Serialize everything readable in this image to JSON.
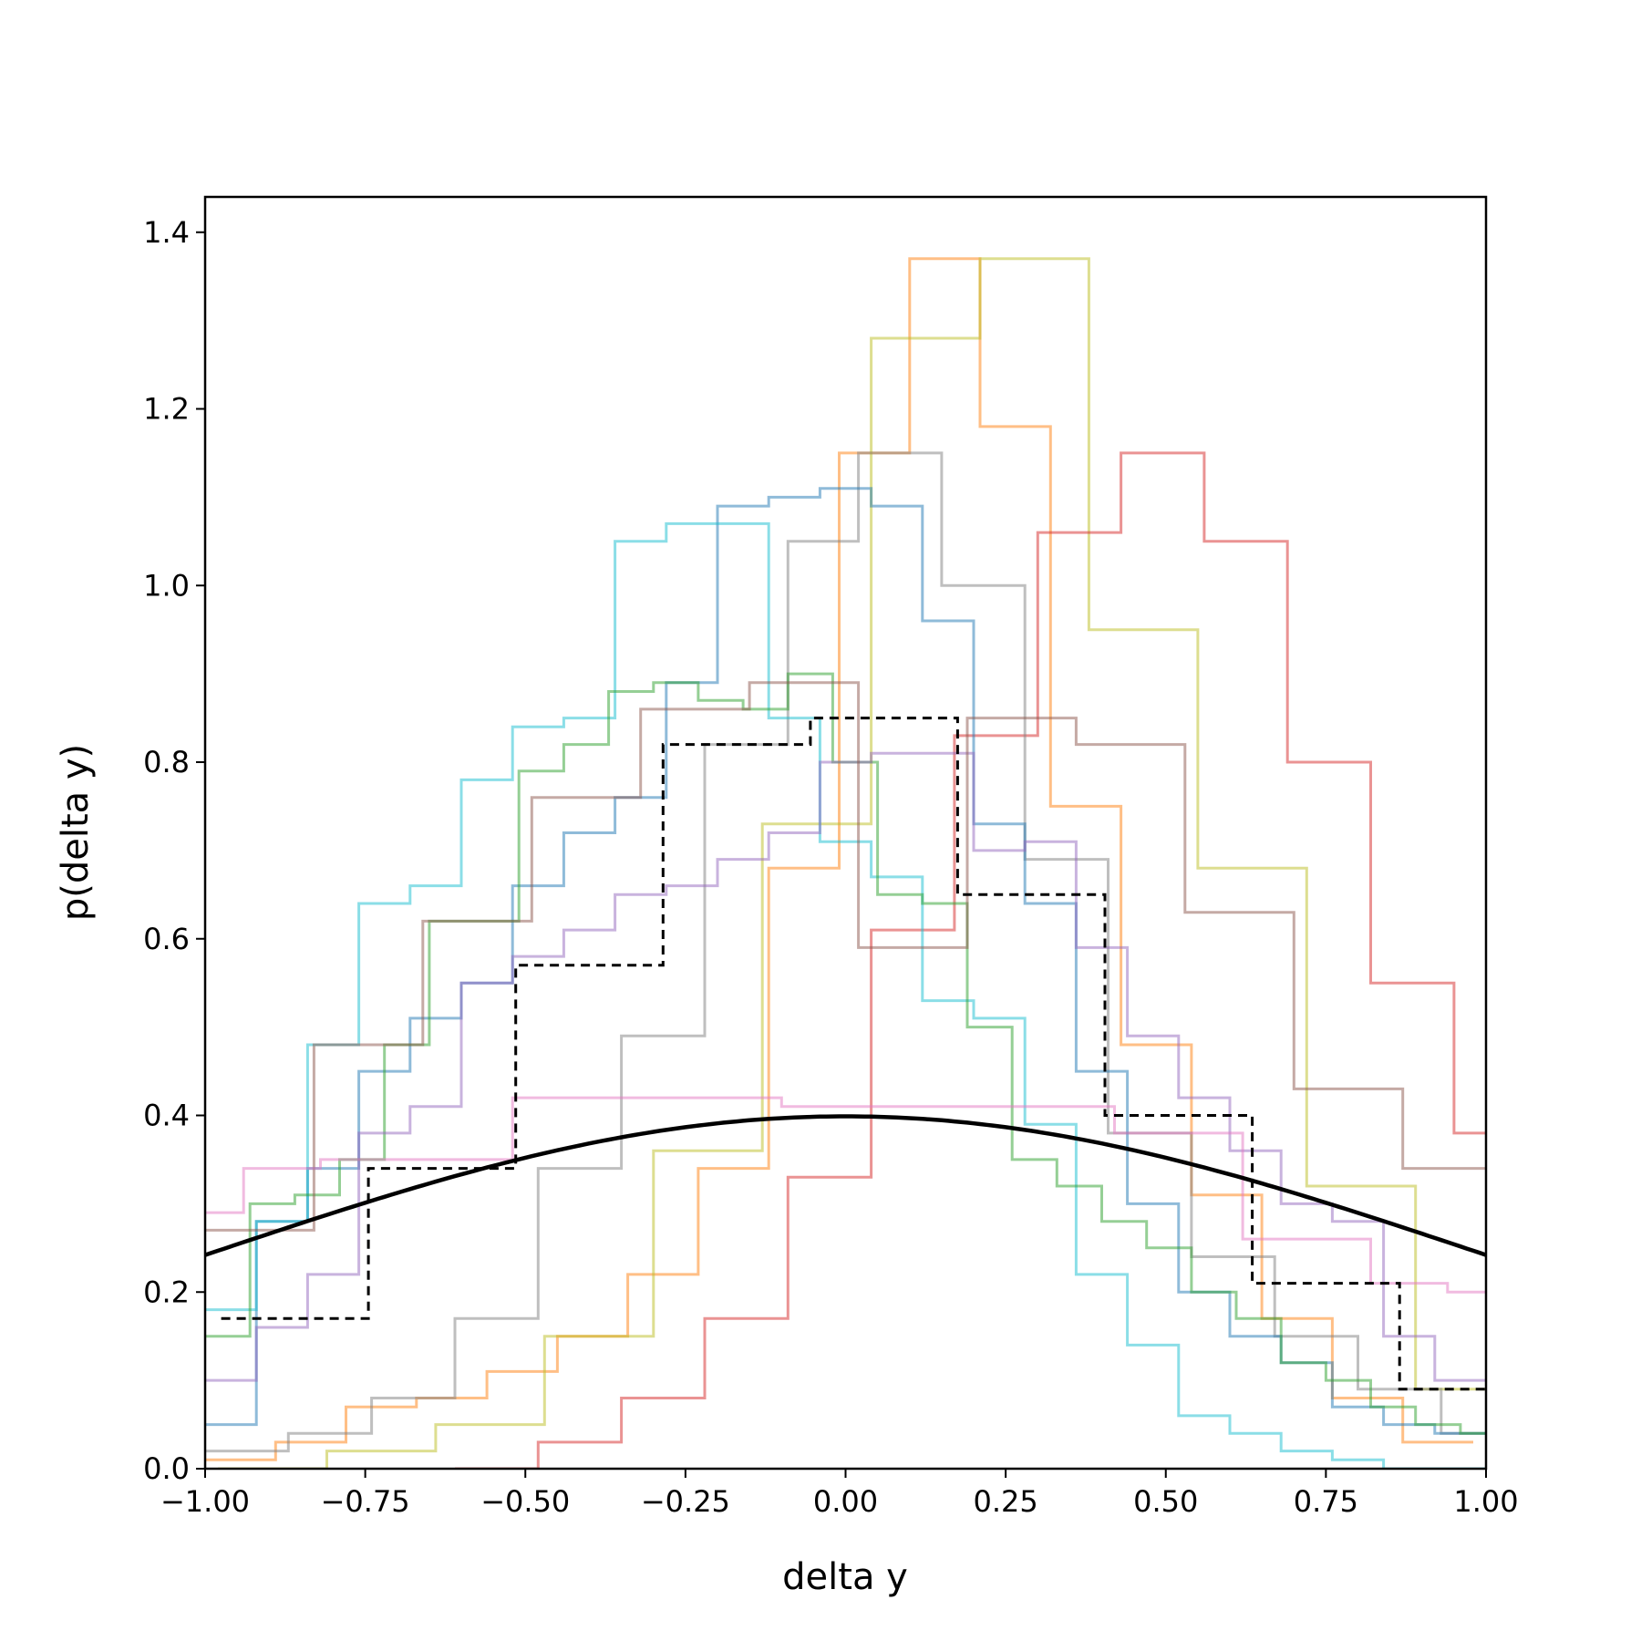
{
  "chart_data": {
    "type": "step",
    "title": "",
    "xlabel": "delta y",
    "ylabel": "p(delta y)",
    "xlim": [
      -1.0,
      1.0
    ],
    "ylim": [
      0.0,
      1.44
    ],
    "xticks": [
      -1.0,
      -0.75,
      -0.5,
      -0.25,
      0.0,
      0.25,
      0.5,
      0.75,
      1.0
    ],
    "xtick_labels": [
      "−1.00",
      "−0.75",
      "−0.50",
      "−0.25",
      "0.00",
      "0.25",
      "0.50",
      "0.75",
      "1.00"
    ],
    "yticks": [
      0.0,
      0.2,
      0.4,
      0.6,
      0.8,
      1.0,
      1.2,
      1.4
    ],
    "ytick_labels": [
      "0.0",
      "0.2",
      "0.4",
      "0.6",
      "0.8",
      "1.0",
      "1.2",
      "1.4"
    ],
    "grid": false,
    "legend": "none",
    "series": [
      {
        "color": "#ff7f0e",
        "edges": [
          -1.0,
          -0.89,
          -0.78,
          -0.67,
          -0.56,
          -0.45,
          -0.34,
          -0.23,
          -0.12,
          -0.01,
          0.1,
          0.21,
          0.32,
          0.43,
          0.54,
          0.65,
          0.76,
          0.87,
          0.98
        ],
        "values": [
          0.01,
          0.03,
          0.07,
          0.08,
          0.11,
          0.15,
          0.22,
          0.34,
          0.68,
          1.15,
          1.37,
          1.18,
          0.75,
          0.48,
          0.31,
          0.17,
          0.08,
          0.03
        ]
      },
      {
        "color": "#bcbd22",
        "edges": [
          -0.98,
          -0.81,
          -0.64,
          -0.47,
          -0.3,
          -0.13,
          0.04,
          0.21,
          0.38,
          0.55,
          0.72,
          0.89
        ],
        "values": [
          0.0,
          0.02,
          0.05,
          0.15,
          0.36,
          0.73,
          1.28,
          1.37,
          0.95,
          0.68,
          0.32,
          0.09
        ]
      },
      {
        "color": "#d62728",
        "edges": [
          -0.61,
          -0.48,
          -0.35,
          -0.22,
          -0.09,
          0.04,
          0.17,
          0.3,
          0.43,
          0.56,
          0.69,
          0.82,
          0.95
        ],
        "values": [
          0.0,
          0.03,
          0.08,
          0.17,
          0.33,
          0.61,
          0.83,
          1.06,
          1.15,
          1.05,
          0.8,
          0.55,
          0.38
        ]
      },
      {
        "color": "#7f7f7f",
        "edges": [
          -1.0,
          -0.87,
          -0.74,
          -0.61,
          -0.48,
          -0.35,
          -0.22,
          -0.09,
          0.02,
          0.15,
          0.28,
          0.41,
          0.54,
          0.67,
          0.8,
          0.93
        ],
        "values": [
          0.02,
          0.04,
          0.08,
          0.17,
          0.34,
          0.49,
          0.82,
          1.05,
          1.15,
          1.0,
          0.69,
          0.38,
          0.24,
          0.15,
          0.09,
          0.04
        ]
      },
      {
        "color": "#1f77b4",
        "edges": [
          -1.0,
          -0.92,
          -0.84,
          -0.76,
          -0.68,
          -0.6,
          -0.52,
          -0.44,
          -0.36,
          -0.28,
          -0.2,
          -0.12,
          -0.04,
          0.04,
          0.12,
          0.2,
          0.28,
          0.36,
          0.44,
          0.52,
          0.6,
          0.68,
          0.76,
          0.84,
          0.92
        ],
        "values": [
          0.05,
          0.28,
          0.34,
          0.45,
          0.51,
          0.55,
          0.66,
          0.72,
          0.76,
          0.89,
          1.09,
          1.1,
          1.11,
          1.09,
          0.96,
          0.73,
          0.64,
          0.45,
          0.3,
          0.2,
          0.15,
          0.12,
          0.07,
          0.05,
          0.04
        ]
      },
      {
        "color": "#17becf",
        "edges": [
          -1.0,
          -0.92,
          -0.84,
          -0.76,
          -0.68,
          -0.6,
          -0.52,
          -0.44,
          -0.36,
          -0.28,
          -0.2,
          -0.12,
          -0.04,
          0.04,
          0.12,
          0.2,
          0.28,
          0.36,
          0.44,
          0.52,
          0.6,
          0.68,
          0.76,
          0.84,
          0.92
        ],
        "values": [
          0.18,
          0.28,
          0.48,
          0.64,
          0.66,
          0.78,
          0.84,
          0.85,
          1.05,
          1.07,
          1.07,
          0.85,
          0.71,
          0.67,
          0.53,
          0.51,
          0.39,
          0.22,
          0.14,
          0.06,
          0.04,
          0.02,
          0.01,
          0.0,
          0.0
        ]
      },
      {
        "color": "#2ca02c",
        "edges": [
          -1.0,
          -0.93,
          -0.86,
          -0.79,
          -0.72,
          -0.65,
          -0.58,
          -0.51,
          -0.44,
          -0.37,
          -0.3,
          -0.23,
          -0.16,
          -0.09,
          -0.02,
          0.05,
          0.12,
          0.19,
          0.26,
          0.33,
          0.4,
          0.47,
          0.54,
          0.61,
          0.68,
          0.75,
          0.82,
          0.89,
          0.96
        ],
        "values": [
          0.15,
          0.3,
          0.31,
          0.35,
          0.48,
          0.62,
          0.62,
          0.79,
          0.82,
          0.88,
          0.89,
          0.87,
          0.86,
          0.9,
          0.8,
          0.65,
          0.64,
          0.5,
          0.35,
          0.32,
          0.28,
          0.25,
          0.2,
          0.17,
          0.12,
          0.1,
          0.07,
          0.05,
          0.04
        ]
      },
      {
        "color": "#9467bd",
        "edges": [
          -1.0,
          -0.92,
          -0.84,
          -0.76,
          -0.68,
          -0.6,
          -0.52,
          -0.44,
          -0.36,
          -0.28,
          -0.2,
          -0.12,
          -0.04,
          0.04,
          0.12,
          0.2,
          0.28,
          0.36,
          0.44,
          0.52,
          0.6,
          0.68,
          0.76,
          0.84,
          0.92
        ],
        "values": [
          0.1,
          0.16,
          0.22,
          0.38,
          0.41,
          0.55,
          0.58,
          0.61,
          0.65,
          0.66,
          0.69,
          0.72,
          0.8,
          0.81,
          0.81,
          0.7,
          0.71,
          0.59,
          0.49,
          0.42,
          0.36,
          0.3,
          0.28,
          0.15,
          0.1
        ]
      },
      {
        "color": "#8c564b",
        "edges": [
          -1.0,
          -0.83,
          -0.66,
          -0.49,
          -0.32,
          -0.15,
          0.02,
          0.19,
          0.36,
          0.53,
          0.7,
          0.87
        ],
        "values": [
          0.27,
          0.48,
          0.62,
          0.76,
          0.86,
          0.89,
          0.59,
          0.85,
          0.82,
          0.63,
          0.43,
          0.34
        ]
      },
      {
        "color": "#e377c2",
        "edges": [
          -1.0,
          -0.94,
          -0.82,
          -0.52,
          -0.1,
          0.42,
          0.62,
          0.82,
          0.94
        ],
        "values": [
          0.29,
          0.34,
          0.35,
          0.42,
          0.41,
          0.38,
          0.26,
          0.21,
          0.2
        ]
      },
      {
        "color": "#000000",
        "style": "dashed",
        "edges": [
          -0.975,
          -0.745,
          -0.515,
          -0.285,
          -0.055,
          0.175,
          0.405,
          0.635,
          0.865,
          1.0
        ],
        "values": [
          0.17,
          0.34,
          0.57,
          0.82,
          0.85,
          0.65,
          0.4,
          0.21,
          0.09
        ]
      }
    ],
    "curve": {
      "label": "",
      "color": "#000000",
      "mu": 0.0,
      "sigma": 1.0
    }
  }
}
